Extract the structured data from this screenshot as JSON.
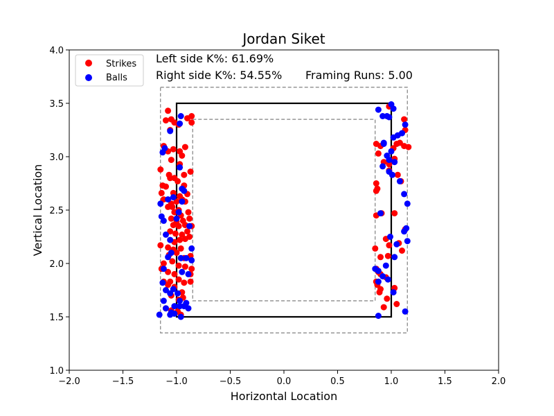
{
  "chart_data": {
    "type": "scatter",
    "title": "Jordan Siket",
    "xlabel": "Horizontal Location",
    "ylabel": "Vertical Location",
    "xlim": [
      -2.0,
      2.0
    ],
    "ylim": [
      1.0,
      4.0
    ],
    "x_ticks": [
      -2.0,
      -1.5,
      -1.0,
      -0.5,
      0.0,
      0.5,
      1.0,
      1.5,
      2.0
    ],
    "x_tick_labels": [
      "−2.0",
      "−1.5",
      "−1.0",
      "−0.5",
      "0.0",
      "0.5",
      "1.0",
      "1.5",
      "2.0"
    ],
    "y_ticks": [
      1.0,
      1.5,
      2.0,
      2.5,
      3.0,
      3.5,
      4.0
    ],
    "y_tick_labels": [
      "1.0",
      "1.5",
      "2.0",
      "2.5",
      "3.0",
      "3.5",
      "4.0"
    ],
    "grid": false,
    "legend_position": "top-left",
    "annotations": {
      "left_k": "Left side K%: 61.69%",
      "right_k": "Right side K%: 54.55%",
      "framing": "Framing Runs: 5.00"
    },
    "zones": {
      "strike_zone": {
        "x": [
          -1.0,
          1.0
        ],
        "y": [
          1.5,
          3.5
        ],
        "style": "solid",
        "color": "#000000"
      },
      "outer_zone": {
        "x": [
          -1.15,
          1.15
        ],
        "y": [
          1.35,
          3.65
        ],
        "style": "dashed",
        "color": "#808080"
      },
      "inner_zone": {
        "x": [
          -0.85,
          0.85
        ],
        "y": [
          1.65,
          3.35
        ],
        "style": "dashed",
        "color": "#808080"
      }
    },
    "series": [
      {
        "name": "Strikes",
        "color": "#ff0000",
        "points": [
          [
            -1.08,
            3.43
          ],
          [
            -1.05,
            3.35
          ],
          [
            -1.02,
            3.32
          ],
          [
            -0.98,
            3.3
          ],
          [
            -0.9,
            3.36
          ],
          [
            -0.86,
            3.38
          ],
          [
            -0.86,
            3.32
          ],
          [
            -1.1,
            3.34
          ],
          [
            -1.06,
            3.25
          ],
          [
            -1.12,
            3.1
          ],
          [
            -1.08,
            3.05
          ],
          [
            -1.03,
            3.07
          ],
          [
            -0.97,
            3.05
          ],
          [
            -0.92,
            3.09
          ],
          [
            -0.95,
            3.01
          ],
          [
            -1.05,
            2.97
          ],
          [
            -0.97,
            2.93
          ],
          [
            -1.15,
            2.88
          ],
          [
            -1.07,
            2.83
          ],
          [
            -1.02,
            2.8
          ],
          [
            -0.93,
            2.83
          ],
          [
            -0.87,
            2.86
          ],
          [
            -1.06,
            2.8
          ],
          [
            -1.13,
            2.73
          ],
          [
            -1.1,
            2.72
          ],
          [
            -0.99,
            2.77
          ],
          [
            -0.93,
            2.73
          ],
          [
            -1.14,
            2.66
          ],
          [
            -1.03,
            2.66
          ],
          [
            -0.97,
            2.63
          ],
          [
            -0.9,
            2.65
          ],
          [
            -1.12,
            2.6
          ],
          [
            -1.05,
            2.56
          ],
          [
            -1.0,
            2.58
          ],
          [
            -0.95,
            2.6
          ],
          [
            -0.92,
            2.58
          ],
          [
            -1.08,
            2.53
          ],
          [
            -1.04,
            2.53
          ],
          [
            -0.98,
            2.5
          ],
          [
            -1.02,
            2.48
          ],
          [
            -0.96,
            2.45
          ],
          [
            -0.89,
            2.48
          ],
          [
            -1.05,
            2.42
          ],
          [
            -1.0,
            2.39
          ],
          [
            -0.94,
            2.4
          ],
          [
            -0.88,
            2.42
          ],
          [
            -1.03,
            2.36
          ],
          [
            -0.98,
            2.35
          ],
          [
            -0.92,
            2.36
          ],
          [
            -0.86,
            2.35
          ],
          [
            -1.06,
            2.3
          ],
          [
            -1.01,
            2.28
          ],
          [
            -0.95,
            2.27
          ],
          [
            -0.9,
            2.3
          ],
          [
            -1.15,
            2.17
          ],
          [
            -1.02,
            2.2
          ],
          [
            -0.97,
            2.22
          ],
          [
            -0.92,
            2.23
          ],
          [
            -0.88,
            2.25
          ],
          [
            -1.08,
            2.15
          ],
          [
            -1.03,
            2.13
          ],
          [
            -0.96,
            2.14
          ],
          [
            -1.07,
            2.08
          ],
          [
            -1.0,
            2.1
          ],
          [
            -0.93,
            2.05
          ],
          [
            -0.87,
            2.07
          ],
          [
            -1.12,
            2.0
          ],
          [
            -1.04,
            2.02
          ],
          [
            -0.98,
            1.98
          ],
          [
            -0.92,
            1.97
          ],
          [
            -1.14,
            1.95
          ],
          [
            -1.08,
            1.92
          ],
          [
            -1.02,
            1.9
          ],
          [
            -0.87,
            1.9
          ],
          [
            -0.86,
            1.95
          ],
          [
            -1.12,
            1.83
          ],
          [
            -1.06,
            1.83
          ],
          [
            -0.98,
            1.85
          ],
          [
            -0.93,
            1.82
          ],
          [
            -0.87,
            1.83
          ],
          [
            -1.08,
            1.8
          ],
          [
            -1.02,
            1.78
          ],
          [
            -0.95,
            1.73
          ],
          [
            -1.05,
            1.7
          ],
          [
            -0.98,
            1.66
          ],
          [
            -0.94,
            1.68
          ],
          [
            -1.1,
            1.58
          ],
          [
            -1.05,
            1.56
          ],
          [
            -0.99,
            1.55
          ],
          [
            -0.96,
            1.52
          ],
          [
            0.98,
            3.47
          ],
          [
            1.12,
            3.35
          ],
          [
            1.13,
            3.25
          ],
          [
            0.86,
            3.12
          ],
          [
            0.9,
            3.1
          ],
          [
            1.02,
            3.08
          ],
          [
            1.05,
            3.12
          ],
          [
            1.08,
            3.13
          ],
          [
            1.12,
            3.1
          ],
          [
            1.16,
            3.09
          ],
          [
            0.88,
            3.03
          ],
          [
            0.93,
            2.95
          ],
          [
            0.98,
            2.93
          ],
          [
            1.03,
            2.98
          ],
          [
            0.98,
            2.87
          ],
          [
            1.06,
            2.83
          ],
          [
            1.09,
            2.77
          ],
          [
            0.86,
            2.75
          ],
          [
            0.87,
            2.7
          ],
          [
            0.86,
            2.68
          ],
          [
            0.91,
            2.47
          ],
          [
            1.03,
            2.47
          ],
          [
            0.86,
            2.45
          ],
          [
            1.13,
            2.32
          ],
          [
            0.95,
            2.23
          ],
          [
            0.98,
            2.17
          ],
          [
            1.07,
            2.19
          ],
          [
            1.1,
            2.12
          ],
          [
            0.85,
            2.14
          ],
          [
            0.9,
            2.06
          ],
          [
            0.97,
            2.07
          ],
          [
            0.86,
            1.95
          ],
          [
            0.88,
            1.92
          ],
          [
            0.9,
            1.9
          ],
          [
            0.95,
            1.87
          ],
          [
            0.86,
            1.83
          ],
          [
            0.87,
            1.8
          ],
          [
            0.9,
            1.76
          ],
          [
            1.03,
            1.77
          ],
          [
            0.89,
            1.73
          ],
          [
            0.96,
            1.67
          ],
          [
            1.05,
            1.62
          ],
          [
            0.93,
            1.59
          ]
        ]
      },
      {
        "name": "Balls",
        "color": "#0000ff",
        "points": [
          [
            -0.96,
            3.38
          ],
          [
            -0.97,
            3.31
          ],
          [
            -1.06,
            3.24
          ],
          [
            -1.11,
            3.08
          ],
          [
            -1.13,
            3.04
          ],
          [
            -0.97,
            2.9
          ],
          [
            -0.95,
            2.7
          ],
          [
            -0.93,
            2.68
          ],
          [
            -1.15,
            2.56
          ],
          [
            -1.08,
            2.6
          ],
          [
            -0.95,
            2.58
          ],
          [
            -1.14,
            2.44
          ],
          [
            -1.12,
            2.4
          ],
          [
            -0.88,
            2.35
          ],
          [
            -1.1,
            2.27
          ],
          [
            -1.06,
            2.22
          ],
          [
            -1.05,
            2.1
          ],
          [
            -0.96,
            2.05
          ],
          [
            -0.91,
            2.05
          ],
          [
            -0.86,
            2.03
          ],
          [
            -1.08,
            2.06
          ],
          [
            -1.12,
            1.95
          ],
          [
            -0.95,
            1.92
          ],
          [
            -0.89,
            1.9
          ],
          [
            -1.13,
            1.82
          ],
          [
            -1.03,
            1.76
          ],
          [
            -1.1,
            1.75
          ],
          [
            -1.06,
            1.72
          ],
          [
            -0.99,
            1.72
          ],
          [
            -1.12,
            1.65
          ],
          [
            -0.97,
            1.65
          ],
          [
            -0.91,
            1.63
          ],
          [
            -1.1,
            1.58
          ],
          [
            -1.02,
            1.6
          ],
          [
            -0.97,
            1.6
          ],
          [
            -0.93,
            1.6
          ],
          [
            -0.89,
            1.58
          ],
          [
            -1.16,
            1.52
          ],
          [
            -1.06,
            1.52
          ],
          [
            -1.02,
            1.53
          ],
          [
            -0.96,
            1.5
          ],
          [
            -1.05,
            1.54
          ],
          [
            -1.0,
            2.42
          ],
          [
            -0.86,
            2.14
          ],
          [
            -1.03,
            2.62
          ],
          [
            -0.98,
            2.48
          ],
          [
            0.88,
            3.44
          ],
          [
            0.92,
            3.38
          ],
          [
            0.96,
            3.38
          ],
          [
            0.98,
            3.37
          ],
          [
            1.0,
            3.49
          ],
          [
            1.02,
            3.45
          ],
          [
            1.13,
            3.3
          ],
          [
            1.1,
            3.22
          ],
          [
            1.06,
            3.2
          ],
          [
            1.02,
            3.18
          ],
          [
            0.93,
            3.13
          ],
          [
            0.93,
            3.12
          ],
          [
            1.0,
            3.05
          ],
          [
            0.96,
            3.01
          ],
          [
            0.98,
            2.97
          ],
          [
            1.03,
            2.95
          ],
          [
            0.92,
            2.91
          ],
          [
            0.98,
            2.86
          ],
          [
            1.01,
            2.83
          ],
          [
            1.08,
            2.77
          ],
          [
            1.12,
            2.65
          ],
          [
            1.15,
            2.56
          ],
          [
            0.9,
            2.47
          ],
          [
            1.12,
            2.3
          ],
          [
            1.14,
            2.33
          ],
          [
            1.15,
            2.21
          ],
          [
            1.05,
            2.18
          ],
          [
            0.99,
            2.25
          ],
          [
            1.03,
            2.06
          ],
          [
            0.95,
            1.98
          ],
          [
            0.88,
            1.93
          ],
          [
            0.92,
            1.88
          ],
          [
            0.97,
            1.85
          ],
          [
            1.02,
            1.73
          ],
          [
            0.88,
            1.83
          ],
          [
            0.85,
            1.95
          ],
          [
            1.13,
            1.55
          ],
          [
            0.88,
            1.51
          ]
        ]
      }
    ]
  }
}
